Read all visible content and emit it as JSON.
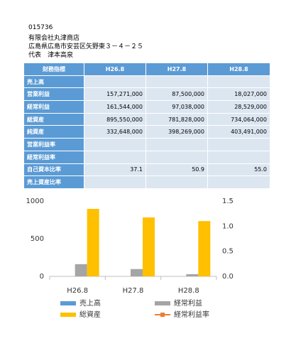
{
  "header": {
    "code": "015736",
    "company": "有限会社丸津商店",
    "address": "広島県広島市安芸区矢野東３－４－２５",
    "representative": "代表　津本高泉"
  },
  "table": {
    "columns": [
      "財務指標",
      "H26.8",
      "H27.8",
      "H28.8"
    ],
    "rows": [
      {
        "label": "売上高",
        "values": [
          null,
          null,
          null
        ]
      },
      {
        "label": "営業利益",
        "values": [
          "157,271,000",
          "87,500,000",
          "18,027,000"
        ]
      },
      {
        "label": "経常利益",
        "values": [
          "161,544,000",
          "97,038,000",
          "28,529,000"
        ]
      },
      {
        "label": "総資産",
        "values": [
          "895,550,000",
          "781,828,000",
          "734,064,000"
        ]
      },
      {
        "label": "純資産",
        "values": [
          "332,648,000",
          "398,269,000",
          "403,491,000"
        ]
      },
      {
        "label": "営業利益率",
        "values": [
          null,
          null,
          null
        ]
      },
      {
        "label": "経常利益率",
        "values": [
          null,
          null,
          null
        ]
      },
      {
        "label": "自己資本比率",
        "values": [
          "37.1",
          "50.9",
          "55.0"
        ]
      },
      {
        "label": "売上資産比率",
        "values": [
          null,
          null,
          null
        ]
      }
    ]
  },
  "chart_data": {
    "type": "bar",
    "categories": [
      "H26.8",
      "H27.8",
      "H28.8"
    ],
    "series": [
      {
        "name": "売上高",
        "color": "#5b9bd5",
        "values": [
          null,
          null,
          null
        ]
      },
      {
        "name": "経常利益",
        "color": "#a5a5a5",
        "values": [
          162,
          97,
          29
        ]
      },
      {
        "name": "総資産",
        "color": "#ffc000",
        "values": [
          896,
          782,
          734
        ]
      },
      {
        "name": "経常利益率",
        "color": "#ed7d31",
        "type": "line",
        "axis": "y2",
        "values": [
          null,
          null,
          null
        ]
      }
    ],
    "ylim": [
      0,
      1000
    ],
    "yticks": [
      0,
      500,
      1000
    ],
    "y2lim": [
      0,
      1.5
    ],
    "y2ticks": [
      {
        "value": 0,
        "label": "0.0"
      },
      {
        "value": 0.5,
        "label": "0.5"
      },
      {
        "value": 1,
        "label": "1.0"
      },
      {
        "value": 1.5,
        "label": "1.5"
      }
    ],
    "grid": false
  }
}
